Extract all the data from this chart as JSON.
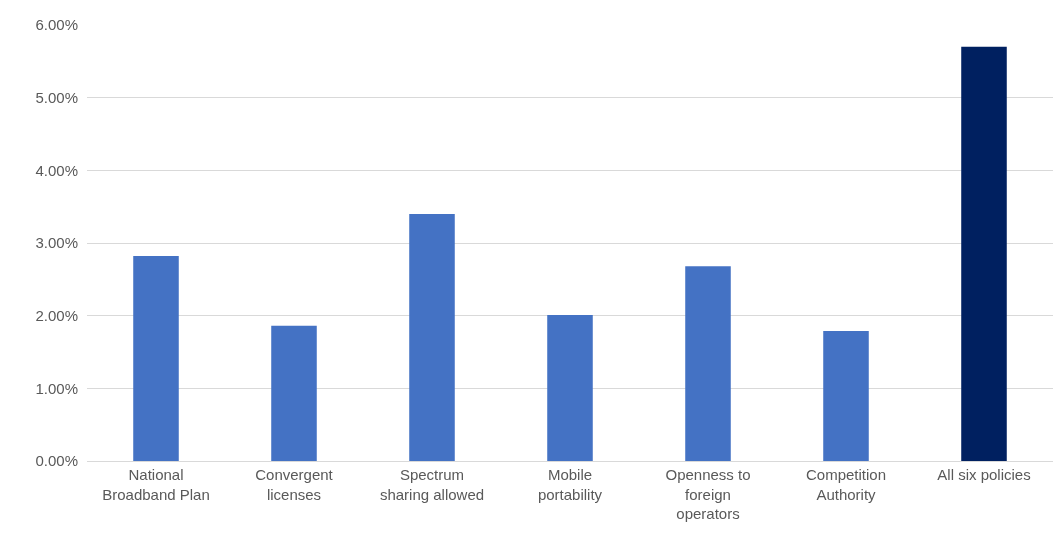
{
  "chart_data": {
    "type": "bar",
    "categories": [
      "National Broadband Plan",
      "Convergent licenses",
      "Spectrum sharing allowed",
      "Mobile portability",
      "Openness to foreign operators",
      "Competition Authority",
      "All six policies"
    ],
    "values": [
      2.82,
      1.86,
      3.4,
      2.01,
      2.68,
      1.79,
      5.7
    ],
    "colors": [
      "#4472c4",
      "#4472c4",
      "#4472c4",
      "#4472c4",
      "#4472c4",
      "#4472c4",
      "#002060"
    ],
    "ylim": [
      0,
      6
    ],
    "yticks": [
      {
        "value": 0,
        "label": "0.00%"
      },
      {
        "value": 1,
        "label": "1.00%"
      },
      {
        "value": 2,
        "label": "2.00%"
      },
      {
        "value": 3,
        "label": "3.00%"
      },
      {
        "value": 4,
        "label": "4.00%"
      },
      {
        "value": 5,
        "label": "5.00%"
      },
      {
        "value": 6,
        "label": "6.00%"
      }
    ],
    "grid": "y"
  }
}
